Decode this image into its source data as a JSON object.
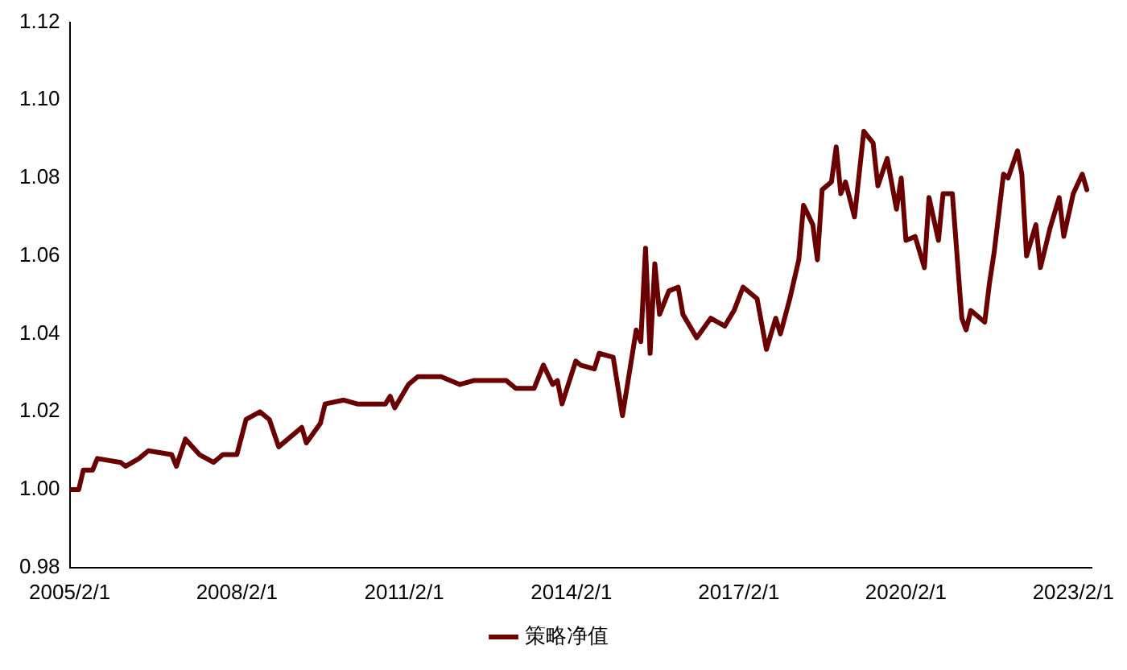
{
  "chart_data": {
    "type": "line",
    "legend": "bottom",
    "grid": false,
    "marker": "none",
    "line_style": "solid",
    "xlim": [
      "2005-02-01",
      "2023-06-01"
    ],
    "xticks": [
      {
        "value": "2005-02-01",
        "label": "2005/2/1"
      },
      {
        "value": "2008-02-01",
        "label": "2008/2/1"
      },
      {
        "value": "2011-02-01",
        "label": "2011/2/1"
      },
      {
        "value": "2014-02-01",
        "label": "2014/2/1"
      },
      {
        "value": "2017-02-01",
        "label": "2017/2/1"
      },
      {
        "value": "2020-02-01",
        "label": "2020/2/1"
      },
      {
        "value": "2023-02-01",
        "label": "2023/2/1"
      }
    ],
    "ylim": [
      0.98,
      1.12
    ],
    "yticks": [
      {
        "value": 0.98,
        "label": "0.98"
      },
      {
        "value": 1.0,
        "label": "1.00"
      },
      {
        "value": 1.02,
        "label": "1.02"
      },
      {
        "value": 1.04,
        "label": "1.04"
      },
      {
        "value": 1.06,
        "label": "1.06"
      },
      {
        "value": 1.08,
        "label": "1.08"
      },
      {
        "value": 1.1,
        "label": "1.10"
      },
      {
        "value": 1.12,
        "label": "1.12"
      }
    ],
    "x": [
      "2005-02",
      "2005-04",
      "2005-05",
      "2005-07",
      "2005-08",
      "2006-01",
      "2006-02",
      "2006-05",
      "2006-07",
      "2006-12",
      "2007-01",
      "2007-03",
      "2007-06",
      "2007-09",
      "2007-11",
      "2008-02",
      "2008-04",
      "2008-07",
      "2008-09",
      "2008-11",
      "2009-01",
      "2009-04",
      "2009-05",
      "2009-08",
      "2009-09",
      "2010-01",
      "2010-04",
      "2010-10",
      "2010-11",
      "2010-12",
      "2011-03",
      "2011-05",
      "2011-10",
      "2012-02",
      "2012-05",
      "2012-12",
      "2013-02",
      "2013-06",
      "2013-08",
      "2013-10",
      "2013-11",
      "2013-12",
      "2014-03",
      "2014-04",
      "2014-07",
      "2014-08",
      "2014-11",
      "2015-01",
      "2015-04",
      "2015-05",
      "2015-06",
      "2015-07",
      "2015-08",
      "2015-09",
      "2015-11",
      "2016-01",
      "2016-02",
      "2016-05",
      "2016-08",
      "2016-11",
      "2017-01",
      "2017-03",
      "2017-06",
      "2017-08",
      "2017-10",
      "2017-11",
      "2018-01",
      "2018-03",
      "2018-04",
      "2018-06",
      "2018-07",
      "2018-08",
      "2018-10",
      "2018-11",
      "2018-12",
      "2019-01",
      "2019-03",
      "2019-05",
      "2019-07",
      "2019-08",
      "2019-10",
      "2019-12",
      "2020-01",
      "2020-02",
      "2020-04",
      "2020-06",
      "2020-07",
      "2020-09",
      "2020-10",
      "2020-12",
      "2021-02",
      "2021-03",
      "2021-04",
      "2021-07",
      "2021-08",
      "2021-09",
      "2021-11",
      "2021-12",
      "2022-02",
      "2022-03",
      "2022-04",
      "2022-06",
      "2022-07",
      "2022-09",
      "2022-11",
      "2022-12",
      "2023-02",
      "2023-04",
      "2023-05"
    ],
    "series": [
      {
        "name": "策略净值",
        "color": "#6b0000",
        "values": [
          1.0,
          1.0,
          1.005,
          1.005,
          1.008,
          1.007,
          1.006,
          1.008,
          1.01,
          1.009,
          1.006,
          1.013,
          1.009,
          1.007,
          1.009,
          1.009,
          1.018,
          1.02,
          1.018,
          1.011,
          1.013,
          1.016,
          1.012,
          1.017,
          1.022,
          1.023,
          1.022,
          1.022,
          1.024,
          1.021,
          1.027,
          1.029,
          1.029,
          1.027,
          1.028,
          1.028,
          1.026,
          1.026,
          1.032,
          1.027,
          1.028,
          1.022,
          1.033,
          1.032,
          1.031,
          1.035,
          1.034,
          1.019,
          1.041,
          1.038,
          1.062,
          1.035,
          1.058,
          1.045,
          1.051,
          1.052,
          1.045,
          1.039,
          1.044,
          1.042,
          1.046,
          1.052,
          1.049,
          1.036,
          1.044,
          1.04,
          1.049,
          1.059,
          1.073,
          1.068,
          1.059,
          1.077,
          1.079,
          1.088,
          1.076,
          1.079,
          1.07,
          1.092,
          1.089,
          1.078,
          1.085,
          1.072,
          1.08,
          1.064,
          1.065,
          1.057,
          1.075,
          1.064,
          1.076,
          1.076,
          1.044,
          1.041,
          1.046,
          1.043,
          1.053,
          1.061,
          1.081,
          1.08,
          1.087,
          1.081,
          1.06,
          1.068,
          1.057,
          1.067,
          1.075,
          1.065,
          1.076,
          1.081,
          1.077
        ]
      }
    ]
  }
}
